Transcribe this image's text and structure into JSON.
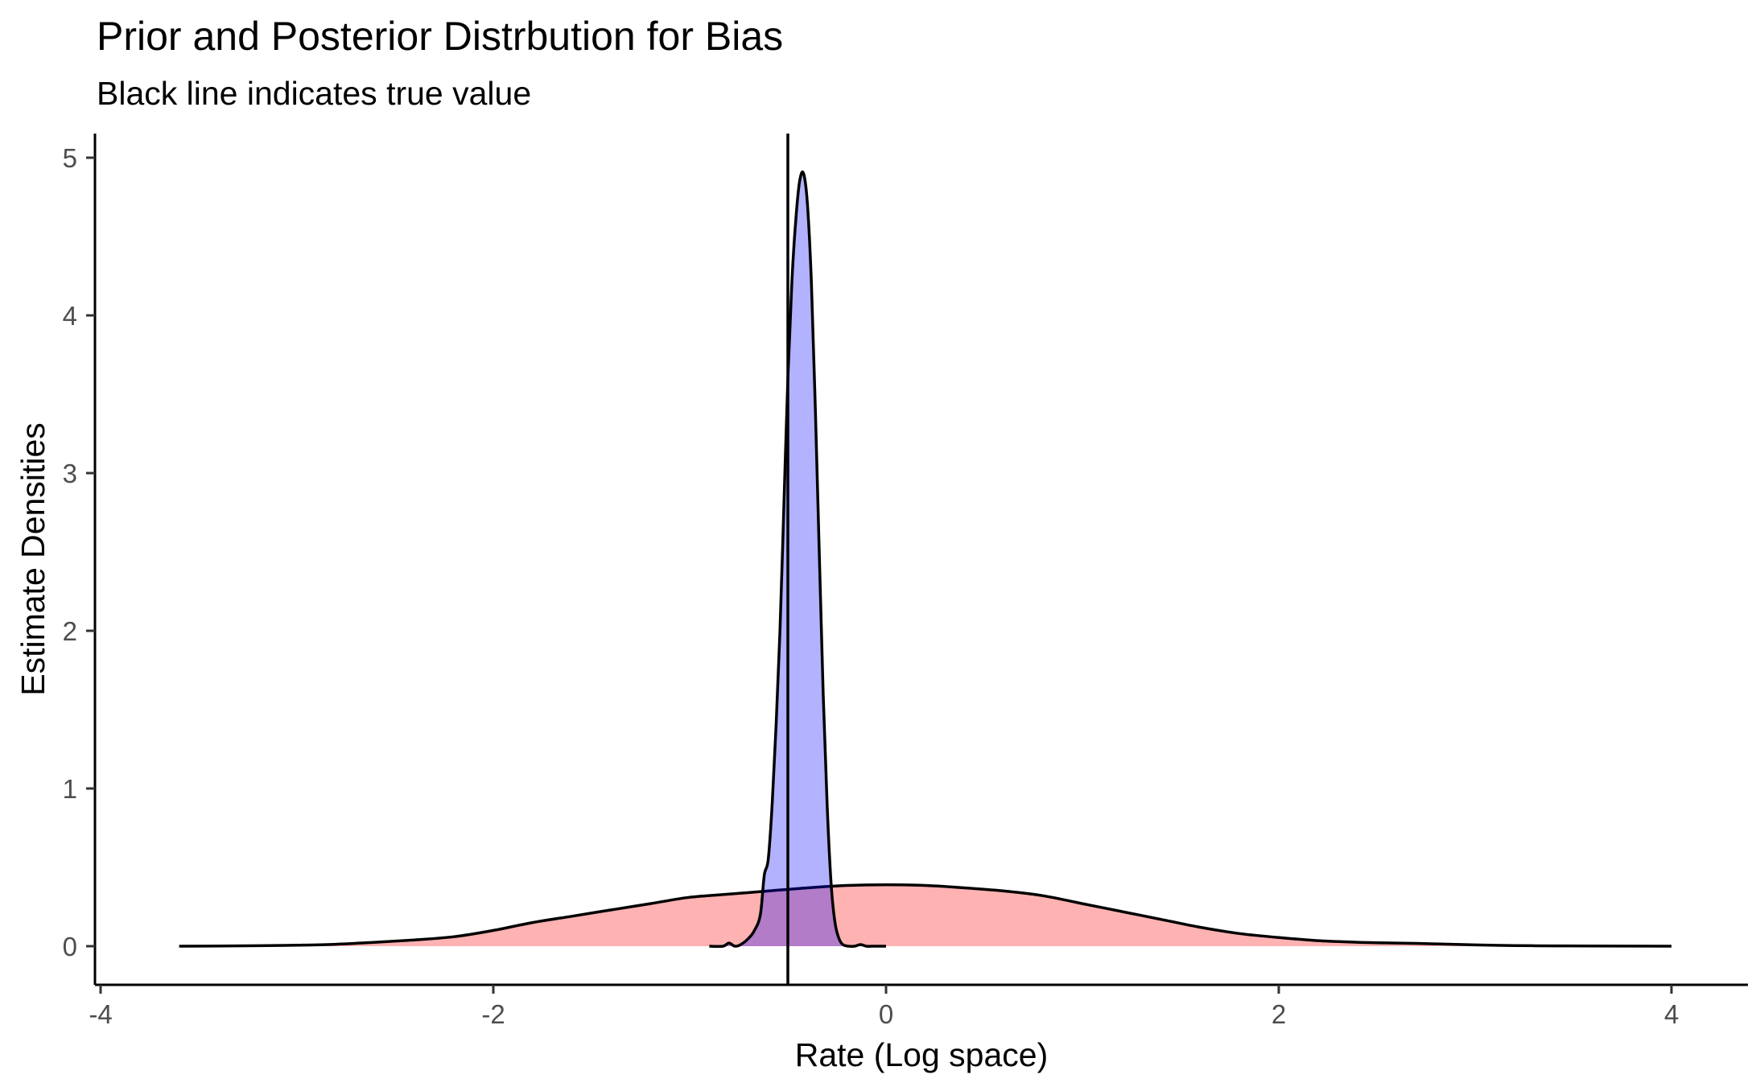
{
  "chart_data": {
    "type": "area",
    "title": "Prior and Posterior Distrbution for Bias",
    "subtitle": "Black line indicates true value",
    "xlabel": "Rate (Log space)",
    "ylabel": "Estimate Densities",
    "xlim": [
      -4,
      4
    ],
    "ylim": [
      0,
      5
    ],
    "x_ticks": [
      -4,
      -2,
      0,
      2,
      4
    ],
    "y_ticks": [
      0,
      1,
      2,
      3,
      4,
      5
    ],
    "x_tick_labels": [
      "-4",
      "-2",
      "0",
      "2",
      "4"
    ],
    "y_tick_labels": [
      "0",
      "1",
      "2",
      "3",
      "4",
      "5"
    ],
    "grid": false,
    "reference_line": {
      "x": -0.5,
      "color": "#000000"
    },
    "series": [
      {
        "fill": "#ff0000",
        "fill_opacity": 0.3,
        "x": [
          -3.6,
          -3.2,
          -3.0,
          -2.8,
          -2.6,
          -2.4,
          -2.2,
          -2.0,
          -1.8,
          -1.6,
          -1.4,
          -1.2,
          -1.0,
          -0.8,
          -0.6,
          -0.4,
          -0.2,
          0.0,
          0.2,
          0.4,
          0.6,
          0.8,
          1.0,
          1.2,
          1.4,
          1.6,
          1.8,
          2.0,
          2.2,
          2.4,
          2.6,
          2.8,
          3.0,
          3.2,
          3.4,
          3.6,
          4.0
        ],
        "y": [
          0.0,
          0.003,
          0.006,
          0.012,
          0.025,
          0.04,
          0.06,
          0.1,
          0.15,
          0.19,
          0.23,
          0.27,
          0.31,
          0.33,
          0.35,
          0.37,
          0.385,
          0.39,
          0.385,
          0.37,
          0.35,
          0.32,
          0.27,
          0.22,
          0.17,
          0.12,
          0.08,
          0.055,
          0.035,
          0.025,
          0.02,
          0.015,
          0.008,
          0.004,
          0.002,
          0.001,
          0.0
        ]
      },
      {
        "fill": "#0000ff",
        "fill_opacity": 0.3,
        "x": [
          -0.9,
          -0.83,
          -0.8,
          -0.77,
          -0.74,
          -0.7,
          -0.67,
          -0.64,
          -0.62,
          -0.6,
          -0.58,
          -0.56,
          -0.54,
          -0.52,
          -0.5,
          -0.48,
          -0.46,
          -0.44,
          -0.42,
          -0.4,
          -0.38,
          -0.36,
          -0.34,
          -0.32,
          -0.3,
          -0.28,
          -0.26,
          -0.24,
          -0.22,
          -0.19,
          -0.16,
          -0.13,
          -0.1,
          -0.07,
          -0.03,
          0.0
        ],
        "y": [
          0.0,
          0.0,
          0.02,
          0.0,
          0.01,
          0.05,
          0.1,
          0.2,
          0.45,
          0.55,
          0.9,
          1.4,
          2.0,
          2.8,
          3.6,
          4.2,
          4.6,
          4.85,
          4.9,
          4.7,
          4.2,
          3.4,
          2.5,
          1.6,
          0.9,
          0.4,
          0.15,
          0.05,
          0.01,
          0.0,
          0.0,
          0.01,
          0.0,
          0.0,
          0.0,
          0.0
        ]
      }
    ]
  }
}
